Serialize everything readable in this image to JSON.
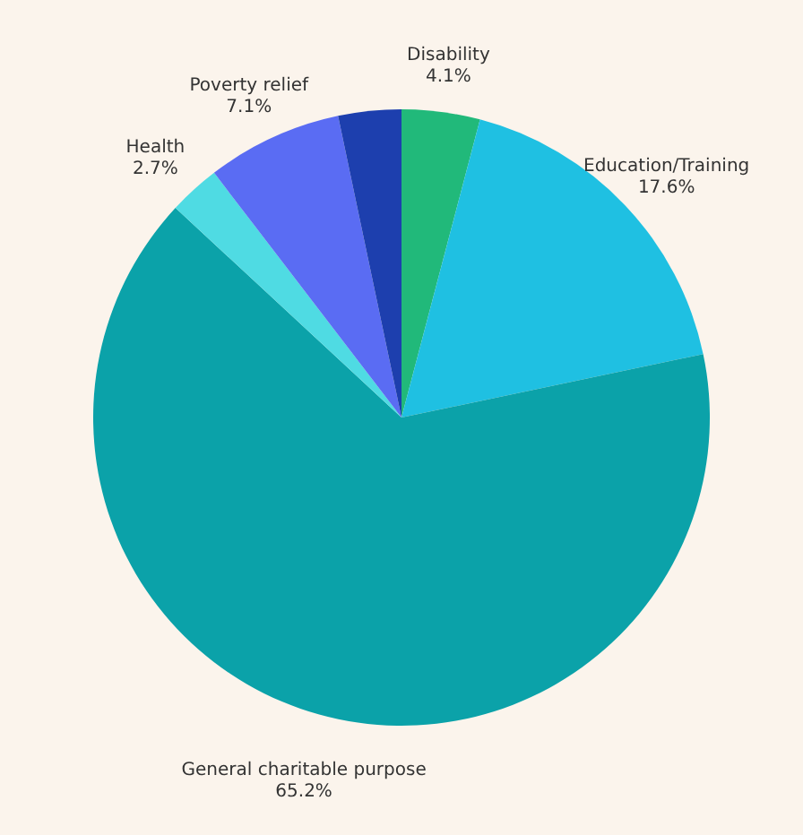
{
  "chart_data": {
    "type": "pie",
    "categories": [
      "Disability",
      "Education/Training",
      "General charitable purpose",
      "Health",
      "Poverty relief",
      null
    ],
    "values": [
      4.1,
      17.6,
      65.2,
      2.7,
      7.1,
      3.3
    ],
    "value_labels": [
      "4.1%",
      "17.6%",
      "65.2%",
      "2.7%",
      "7.1%",
      null
    ],
    "colors": [
      "#21b97a",
      "#1fc0e2",
      "#0ba2a9",
      "#4fdbe3",
      "#5a6cf3",
      "#1d3fae"
    ],
    "legend": false
  }
}
